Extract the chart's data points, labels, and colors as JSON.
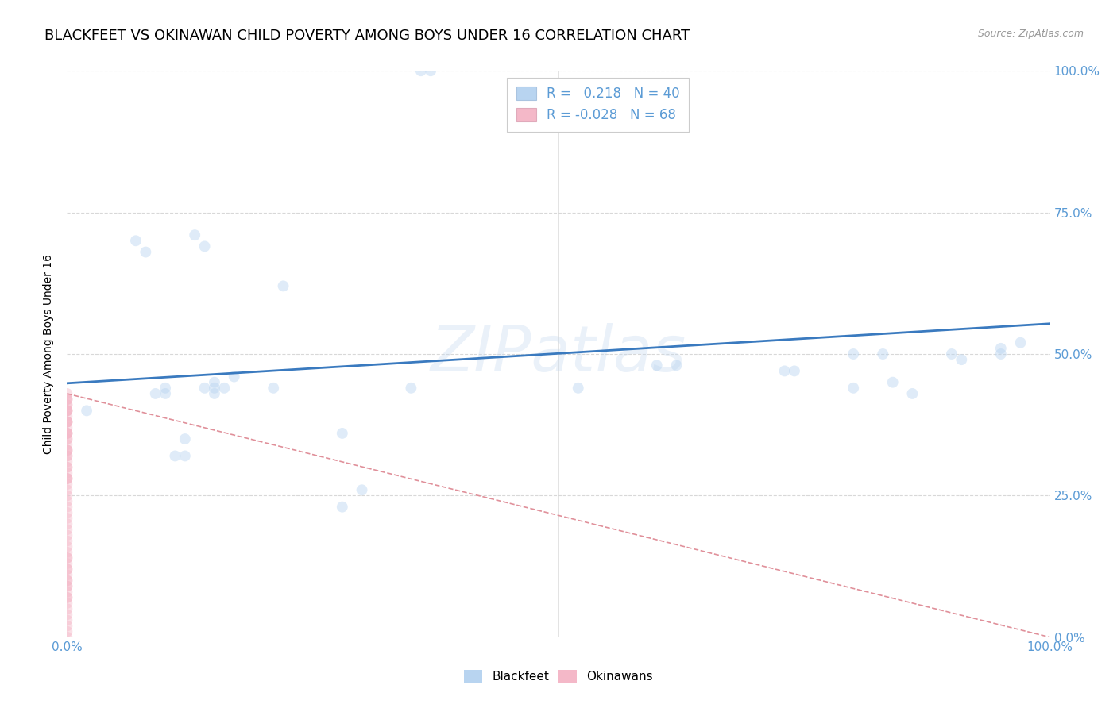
{
  "title": "BLACKFEET VS OKINAWAN CHILD POVERTY AMONG BOYS UNDER 16 CORRELATION CHART",
  "source": "Source: ZipAtlas.com",
  "ylabel": "Child Poverty Among Boys Under 16",
  "watermark": "ZIPatlas",
  "blackfeet_R": 0.218,
  "blackfeet_N": 40,
  "okinawan_R": -0.028,
  "okinawan_N": 68,
  "blackfeet_color": "#b8d4f0",
  "okinawan_color": "#f4b8c8",
  "trendline_blue": "#3a7abf",
  "trendline_pink": "#e0909a",
  "blackfeet_x": [
    0.02,
    0.07,
    0.08,
    0.09,
    0.1,
    0.1,
    0.11,
    0.12,
    0.12,
    0.13,
    0.14,
    0.14,
    0.15,
    0.15,
    0.15,
    0.16,
    0.17,
    0.21,
    0.22,
    0.28,
    0.28,
    0.3,
    0.35,
    0.36,
    0.37,
    0.52,
    0.6,
    0.62,
    0.73,
    0.74,
    0.8,
    0.8,
    0.83,
    0.84,
    0.86,
    0.9,
    0.91,
    0.95,
    0.95,
    0.97
  ],
  "blackfeet_y": [
    0.4,
    0.7,
    0.68,
    0.43,
    0.44,
    0.43,
    0.32,
    0.35,
    0.32,
    0.71,
    0.69,
    0.44,
    0.43,
    0.45,
    0.44,
    0.44,
    0.46,
    0.44,
    0.62,
    0.36,
    0.23,
    0.26,
    0.44,
    1.0,
    1.0,
    0.44,
    0.48,
    0.48,
    0.47,
    0.47,
    0.44,
    0.5,
    0.5,
    0.45,
    0.43,
    0.5,
    0.49,
    0.5,
    0.51,
    0.52
  ],
  "okinawan_x": [
    0.0,
    0.0,
    0.0,
    0.0,
    0.0,
    0.0,
    0.0,
    0.0,
    0.0,
    0.0,
    0.0,
    0.0,
    0.0,
    0.0,
    0.0,
    0.0,
    0.0,
    0.0,
    0.0,
    0.0,
    0.0,
    0.0,
    0.0,
    0.0,
    0.0,
    0.0,
    0.0,
    0.0,
    0.0,
    0.0,
    0.0,
    0.0,
    0.0,
    0.0,
    0.0,
    0.0,
    0.0,
    0.0,
    0.0,
    0.0,
    0.0,
    0.0,
    0.0,
    0.0,
    0.0,
    0.0,
    0.0,
    0.0,
    0.0,
    0.0,
    0.0,
    0.0,
    0.0,
    0.0,
    0.0,
    0.0,
    0.0,
    0.0,
    0.0,
    0.0,
    0.0,
    0.0,
    0.0,
    0.0,
    0.0,
    0.0,
    0.0,
    0.0
  ],
  "okinawan_y": [
    0.0,
    0.01,
    0.02,
    0.03,
    0.04,
    0.05,
    0.06,
    0.07,
    0.07,
    0.08,
    0.09,
    0.09,
    0.1,
    0.1,
    0.11,
    0.12,
    0.12,
    0.13,
    0.14,
    0.14,
    0.15,
    0.16,
    0.17,
    0.18,
    0.19,
    0.2,
    0.21,
    0.22,
    0.23,
    0.24,
    0.25,
    0.26,
    0.27,
    0.28,
    0.28,
    0.29,
    0.3,
    0.31,
    0.32,
    0.32,
    0.33,
    0.34,
    0.35,
    0.36,
    0.36,
    0.37,
    0.38,
    0.38,
    0.39,
    0.4,
    0.41,
    0.41,
    0.42,
    0.42,
    0.43,
    0.4,
    0.38,
    0.36,
    0.33,
    0.3,
    0.28,
    0.38,
    0.4,
    0.42,
    0.35,
    0.33,
    0.36,
    0.4
  ],
  "xlim": [
    0.0,
    1.0
  ],
  "ylim": [
    0.0,
    1.0
  ],
  "yticks": [
    0.0,
    0.25,
    0.5,
    0.75,
    1.0
  ],
  "yticklabels_right": [
    "0.0%",
    "25.0%",
    "50.0%",
    "75.0%",
    "100.0%"
  ],
  "grid_color": "#d8d8d8",
  "bg_color": "#ffffff",
  "tick_color": "#5b9bd5",
  "title_fontsize": 13,
  "marker_size": 100,
  "marker_alpha": 0.45
}
